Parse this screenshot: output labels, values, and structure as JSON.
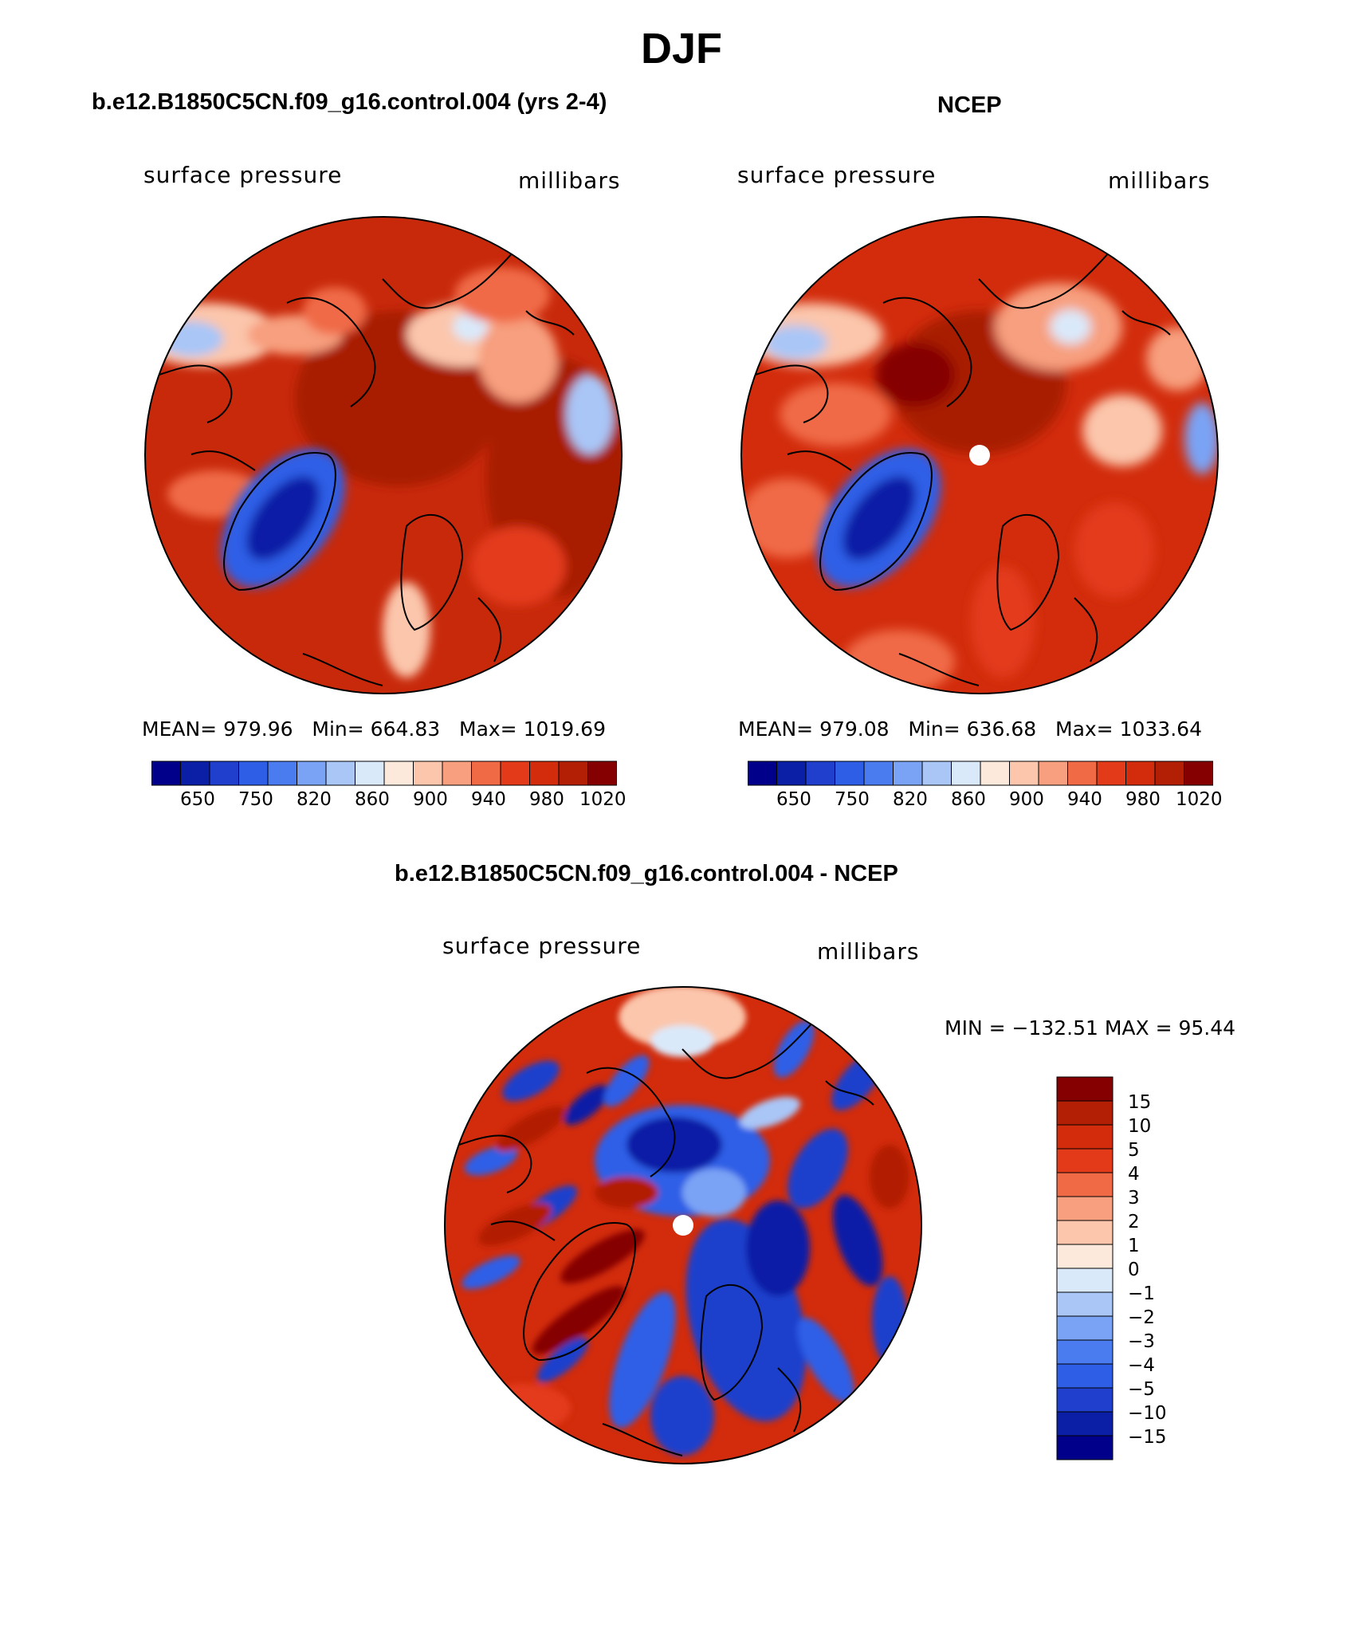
{
  "title": "DJF",
  "panels": [
    {
      "title": "b.e12.B1850C5CN.f09_g16.control.004 (yrs 2-4)",
      "variable": "surface pressure",
      "units": "millibars",
      "stats": {
        "mean_label": "MEAN=",
        "mean": "979.96",
        "min_label": "Min=",
        "min": "664.83",
        "max_label": "Max=",
        "max": "1019.69"
      },
      "colorbar_ticks": [
        "650",
        "750",
        "820",
        "860",
        "900",
        "940",
        "980",
        "1020"
      ]
    },
    {
      "title": "NCEP",
      "variable": "surface pressure",
      "units": "millibars",
      "stats": {
        "mean_label": "MEAN=",
        "mean": "979.08",
        "min_label": "Min=",
        "min": "636.68",
        "max_label": "Max=",
        "max": "1033.64"
      },
      "colorbar_ticks": [
        "650",
        "750",
        "820",
        "860",
        "900",
        "940",
        "980",
        "1020"
      ]
    }
  ],
  "diff_panel": {
    "title": "b.e12.B1850C5CN.f09_g16.control.004 - NCEP",
    "variable": "surface pressure",
    "units": "millibars",
    "range_text": "MIN = −132.51 MAX =   95.44",
    "colorbar_ticks": [
      "15",
      "10",
      "5",
      "4",
      "3",
      "2",
      "1",
      "0",
      "−1",
      "−2",
      "−3",
      "−4",
      "−5",
      "−10",
      "−15"
    ]
  },
  "palettes": {
    "abs": [
      "#00008a",
      "#0a1fa6",
      "#1f3fcc",
      "#2e5ee6",
      "#4a7cf0",
      "#7aa3f5",
      "#a9c6f7",
      "#dae9fa",
      "#fde9dc",
      "#fbc6ac",
      "#f79f7e",
      "#f06a46",
      "#e33b1a",
      "#d22c0c",
      "#b21f05",
      "#850000"
    ],
    "diff": [
      "#850000",
      "#b21f05",
      "#d22c0c",
      "#e33b1a",
      "#f06a46",
      "#f79f7e",
      "#fbc6ac",
      "#fde9dc",
      "#dae9fa",
      "#a9c6f7",
      "#7aa3f5",
      "#4a7cf0",
      "#2e5ee6",
      "#1f3fcc",
      "#0a1fa6",
      "#00008a"
    ],
    "base_red": "#c8290b",
    "dark_red": "#a81f04",
    "greenland_blue": "#2e5ee6",
    "greenland_dark": "#0a1fa6"
  }
}
